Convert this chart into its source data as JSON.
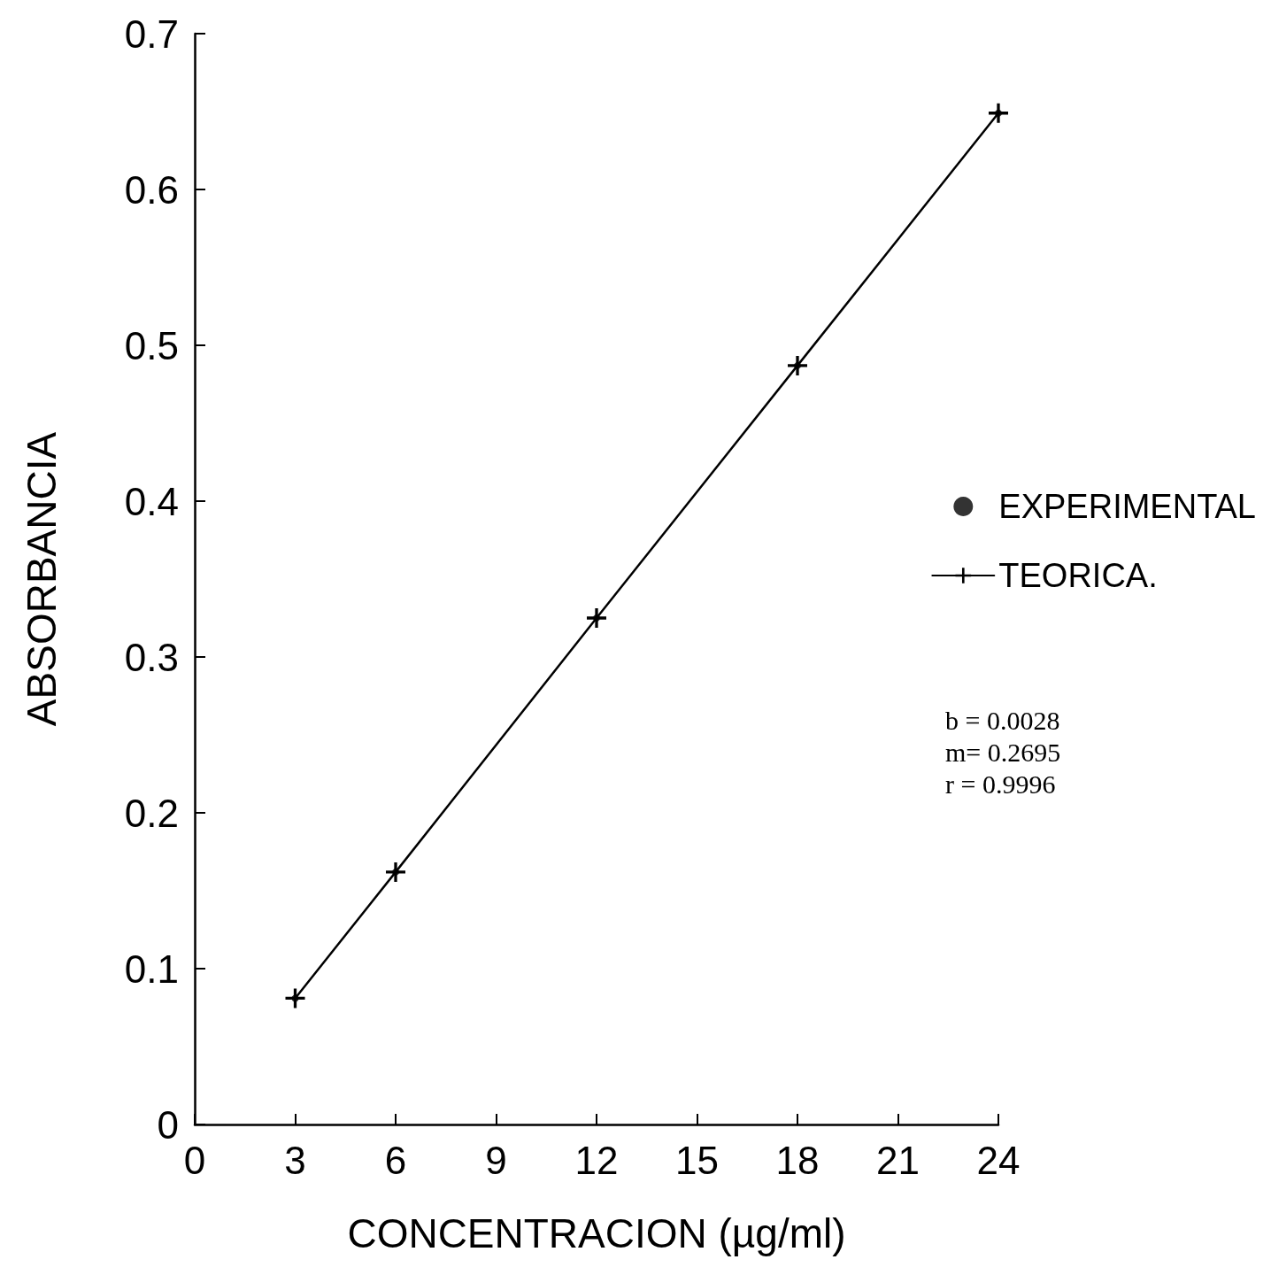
{
  "chart_data": {
    "type": "line",
    "xlabel": "CONCENTRACION (µg/ml)",
    "ylabel": "ABSORBANCIA",
    "x": [
      3,
      6,
      12,
      18,
      24
    ],
    "series": [
      {
        "name": "EXPERIMENTAL",
        "type": "scatter",
        "color": "#000000",
        "marker": "circle",
        "values": [
          0.081,
          0.162,
          0.325,
          0.487,
          0.649
        ]
      },
      {
        "name": "TEORICA.",
        "type": "line",
        "color": "#000000",
        "marker": "cross",
        "values": [
          0.081,
          0.162,
          0.325,
          0.487,
          0.649
        ]
      }
    ],
    "xlim": [
      0,
      24
    ],
    "xticks": [
      0,
      3,
      6,
      9,
      12,
      15,
      18,
      21,
      24
    ],
    "ylim": [
      0,
      0.7
    ],
    "yticks": [
      0,
      0.1,
      0.2,
      0.3,
      0.4,
      0.5,
      0.6,
      0.7
    ],
    "grid": false,
    "legend": "right",
    "annotations": [
      "b = 0.0028",
      "m= 0.2695",
      "r = 0.9996"
    ]
  }
}
